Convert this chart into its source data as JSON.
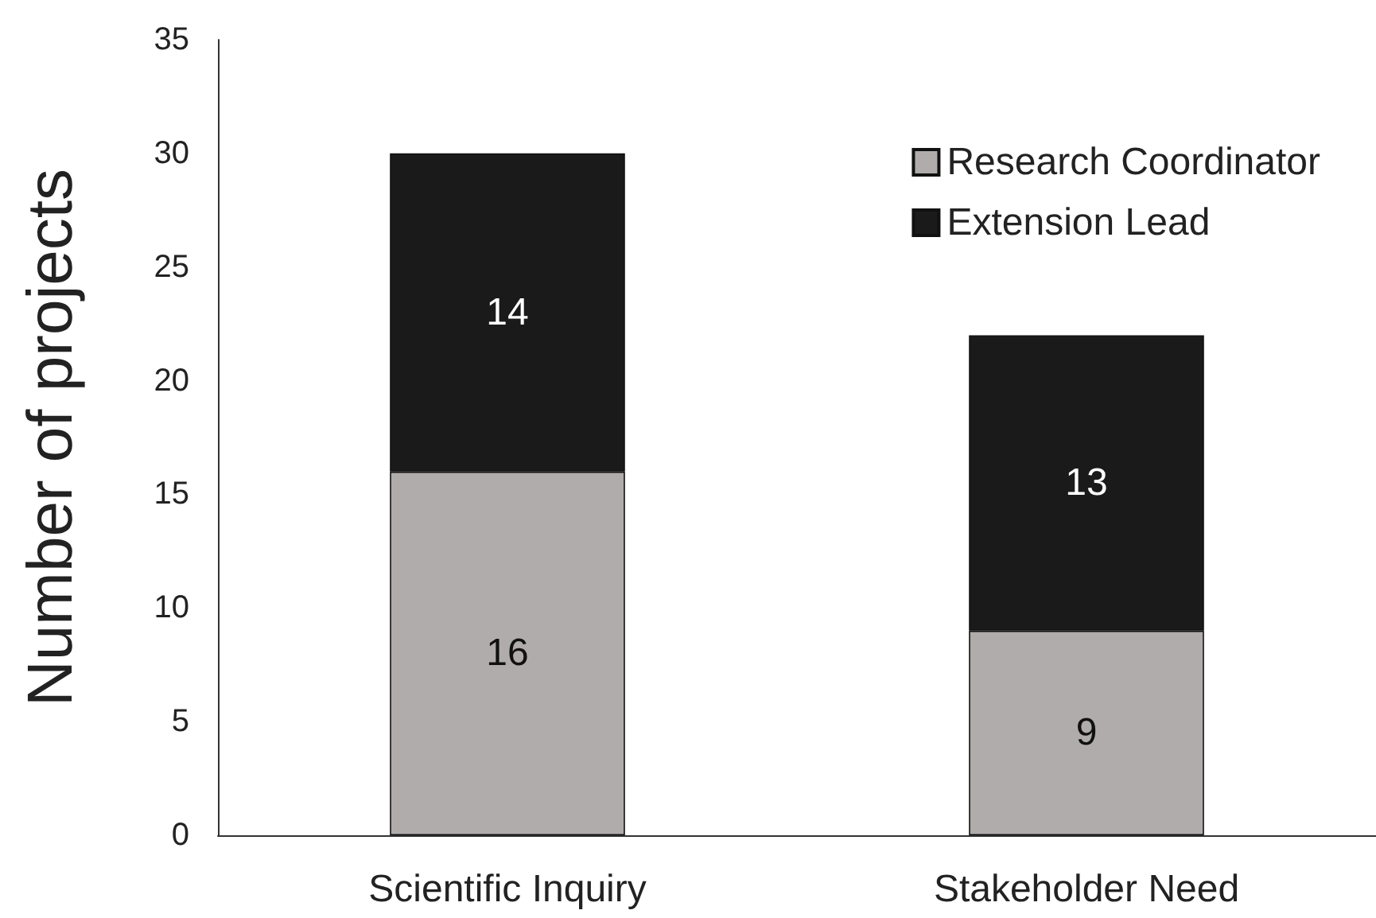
{
  "chart_data": {
    "type": "bar",
    "ylabel": "Number of projects",
    "categories": [
      "Scientific Inquiry",
      "Stakeholder Need"
    ],
    "series": [
      {
        "name": "Research Coordinator",
        "color": "#b0acab",
        "values": [
          16,
          9
        ]
      },
      {
        "name": "Extension Lead",
        "color": "#1a1a1a",
        "values": [
          14,
          13
        ]
      }
    ],
    "stacked": true,
    "data_labels": true,
    "ylim": [
      0,
      35
    ],
    "yticks": [
      0,
      5,
      10,
      15,
      20,
      25,
      30,
      35
    ],
    "grid": false,
    "legend": "top right"
  }
}
